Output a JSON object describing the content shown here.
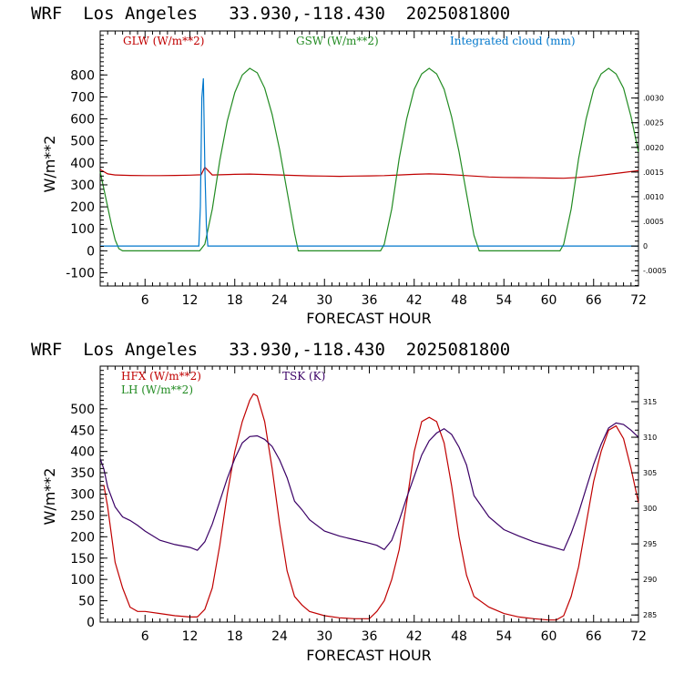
{
  "chart_data": [
    {
      "type": "line",
      "title": "WRF  Los Angeles   33.930,-118.430  2025081800",
      "xlabel": "FORECAST HOUR",
      "ylabel": "W/m**2",
      "xlim": [
        0,
        72
      ],
      "ylim": [
        -160,
        1000
      ],
      "ylim_right": [
        -0.00081,
        0.00436
      ],
      "x_ticks": [
        "6",
        "12",
        "18",
        "24",
        "30",
        "36",
        "42",
        "48",
        "54",
        "60",
        "66",
        "72"
      ],
      "y_ticks": [
        "-100",
        "0",
        "100",
        "200",
        "300",
        "400",
        "500",
        "600",
        "700",
        "800"
      ],
      "y_ticks_right": [
        "-.0005",
        "0",
        ".0005",
        ".0010",
        ".0015",
        ".0020",
        ".0025",
        ".0030"
      ],
      "series": [
        {
          "name": "GLW (W/m**2)",
          "color": "#c00000",
          "axis": "left",
          "x": [
            0,
            1,
            2,
            4,
            6,
            8,
            10,
            12,
            13.5,
            14,
            15,
            16,
            18,
            20,
            22,
            24,
            26,
            28,
            30,
            32,
            34,
            36,
            38,
            40,
            42,
            44,
            46,
            48,
            50,
            52,
            54,
            56,
            58,
            60,
            62,
            64,
            66,
            68,
            70,
            72
          ],
          "y": [
            370,
            350,
            345,
            343,
            342,
            342,
            343,
            344,
            346,
            380,
            345,
            346,
            348,
            349,
            347,
            345,
            343,
            341,
            340,
            339,
            340,
            341,
            342,
            345,
            348,
            350,
            348,
            344,
            340,
            336,
            334,
            333,
            332,
            331,
            330,
            334,
            340,
            348,
            356,
            365
          ]
        },
        {
          "name": "GSW (W/m**2)",
          "color": "#228b22",
          "axis": "left",
          "x": [
            0,
            0.5,
            1,
            1.5,
            2,
            2.5,
            3,
            4,
            6,
            8,
            10,
            12,
            13.3,
            14,
            15,
            16,
            17,
            18,
            19,
            20,
            21,
            22,
            23,
            24,
            25,
            26,
            26.5,
            28,
            30,
            32,
            34,
            36,
            37.5,
            38,
            39,
            40,
            41,
            42,
            43,
            44,
            45,
            46,
            47,
            48,
            49,
            50,
            50.7,
            52,
            54,
            56,
            58,
            60,
            61.5,
            62,
            63,
            64,
            65,
            66,
            67,
            68,
            69,
            70,
            71,
            72
          ],
          "y": [
            360,
            280,
            200,
            120,
            50,
            10,
            0,
            0,
            0,
            0,
            0,
            0,
            0,
            30,
            190,
            410,
            590,
            720,
            800,
            830,
            810,
            740,
            620,
            460,
            270,
            80,
            0,
            0,
            0,
            0,
            0,
            0,
            0,
            30,
            190,
            420,
            600,
            735,
            805,
            830,
            805,
            735,
            610,
            450,
            260,
            70,
            0,
            0,
            0,
            0,
            0,
            0,
            0,
            30,
            190,
            420,
            600,
            735,
            805,
            830,
            805,
            740,
            610,
            450
          ]
        },
        {
          "name": "Integrated cloud (mm)",
          "color": "#0077cc",
          "axis": "right",
          "x": [
            0,
            13.2,
            13.4,
            13.6,
            13.8,
            14,
            14.2,
            14.4,
            14.6,
            72
          ],
          "y": [
            0,
            0,
            0.0008,
            0.003,
            0.0034,
            0.0016,
            0.0004,
            0,
            0,
            0
          ]
        }
      ]
    },
    {
      "type": "line",
      "title": "WRF  Los Angeles   33.930,-118.430  2025081800",
      "xlabel": "FORECAST HOUR",
      "ylabel": "W/m**2",
      "xlim": [
        0,
        72
      ],
      "ylim": [
        0,
        600
      ],
      "ylim_right": [
        284,
        320
      ],
      "x_ticks": [
        "6",
        "12",
        "18",
        "24",
        "30",
        "36",
        "42",
        "48",
        "54",
        "60",
        "66",
        "72"
      ],
      "y_ticks": [
        "0",
        "50",
        "100",
        "150",
        "200",
        "250",
        "300",
        "350",
        "400",
        "450",
        "500"
      ],
      "y_ticks_right": [
        "285",
        "290",
        "295",
        "300",
        "305",
        "310",
        "315"
      ],
      "series": [
        {
          "name": "HFX (W/m**2)",
          "color": "#c00000",
          "axis": "left",
          "x": [
            0,
            0.5,
            1,
            2,
            3,
            4,
            5,
            6,
            8,
            10,
            12,
            13,
            14,
            15,
            16,
            17,
            18,
            19,
            20,
            20.5,
            21,
            22,
            23,
            24,
            25,
            26,
            27,
            28,
            30,
            32,
            34,
            36,
            37,
            38,
            39,
            40,
            41,
            42,
            43,
            44,
            45,
            46,
            47,
            48,
            49,
            50,
            52,
            54,
            56,
            58,
            60,
            61,
            62,
            63,
            64,
            65,
            66,
            67,
            68,
            69,
            70,
            71,
            72
          ],
          "y": [
            320,
            320,
            270,
            140,
            80,
            35,
            25,
            25,
            20,
            15,
            12,
            12,
            30,
            80,
            180,
            300,
            400,
            470,
            520,
            535,
            530,
            470,
            360,
            230,
            120,
            60,
            40,
            25,
            15,
            10,
            8,
            8,
            25,
            50,
            100,
            170,
            280,
            400,
            470,
            480,
            470,
            420,
            320,
            200,
            110,
            60,
            35,
            20,
            12,
            8,
            5,
            5,
            15,
            60,
            130,
            230,
            330,
            400,
            450,
            460,
            430,
            360,
            280
          ]
        },
        {
          "name": "TSK (K)",
          "color": "#3a0066",
          "axis": "right",
          "x": [
            0,
            0.5,
            1,
            2,
            3,
            4,
            5,
            6,
            8,
            10,
            12,
            13,
            14,
            15,
            16,
            17,
            18,
            19,
            20,
            21,
            22,
            23,
            24,
            25,
            26,
            27,
            28,
            30,
            32,
            34,
            36,
            37,
            38,
            39,
            40,
            41,
            42,
            43,
            44,
            45,
            46,
            47,
            48,
            49,
            50,
            52,
            54,
            56,
            58,
            60,
            61,
            62,
            63,
            64,
            65,
            66,
            67,
            68,
            69,
            70,
            71,
            72
          ],
          "y": [
            307,
            305.5,
            303,
            300.2,
            298.8,
            298.3,
            297.6,
            296.8,
            295.5,
            294.9,
            294.5,
            294.1,
            295.3,
            297.8,
            301,
            304.2,
            307,
            309.2,
            310.1,
            310.2,
            309.7,
            308.7,
            306.8,
            304.3,
            301,
            299.8,
            298.4,
            296.8,
            296.1,
            295.6,
            295.1,
            294.8,
            294.2,
            295.5,
            298.3,
            301.5,
            304.5,
            307.5,
            309.5,
            310.6,
            311.2,
            310.4,
            308.6,
            306.1,
            301.8,
            298.8,
            297,
            296.1,
            295.3,
            294.7,
            294.4,
            294.1,
            296.5,
            299.4,
            302.8,
            306.2,
            309,
            311.3,
            312,
            311.8,
            311,
            310
          ]
        }
      ]
    }
  ]
}
